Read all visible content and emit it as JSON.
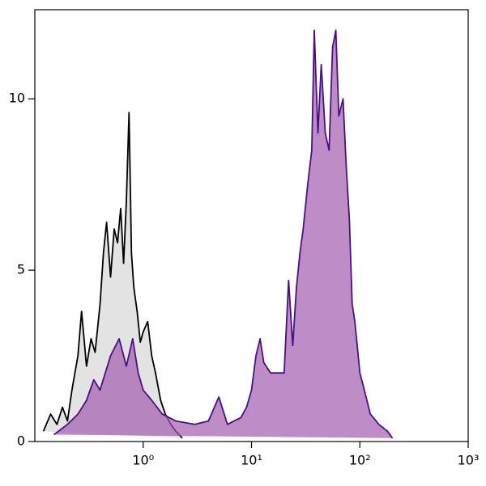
{
  "chart_data": {
    "type": "histogram-overlay",
    "xscale": "log",
    "xlim": [
      0.1,
      1000
    ],
    "ylim": [
      0,
      12.6
    ],
    "xticks": [
      {
        "value": 1,
        "label": "10⁰"
      },
      {
        "value": 10,
        "label": "10¹"
      },
      {
        "value": 100,
        "label": "10²"
      },
      {
        "value": 1000,
        "label": "10³"
      }
    ],
    "yticks": [
      0,
      5,
      10
    ],
    "series": [
      {
        "color": "#000000",
        "fill": "#e3e3e3",
        "fill_opacity": 1,
        "x": [
          0.12,
          0.14,
          0.16,
          0.18,
          0.2,
          0.22,
          0.25,
          0.27,
          0.3,
          0.33,
          0.36,
          0.4,
          0.43,
          0.46,
          0.5,
          0.54,
          0.58,
          0.62,
          0.66,
          0.7,
          0.74,
          0.78,
          0.82,
          0.88,
          0.94,
          1.0,
          1.1,
          1.2,
          1.3,
          1.45,
          1.6,
          1.8,
          2.0,
          2.3
        ],
        "values": [
          0.3,
          0.8,
          0.5,
          1.0,
          0.6,
          1.5,
          2.5,
          3.8,
          2.2,
          3.0,
          2.6,
          4.0,
          5.5,
          6.4,
          4.8,
          6.2,
          5.8,
          6.8,
          5.2,
          7.0,
          9.6,
          5.5,
          4.5,
          3.8,
          2.9,
          3.2,
          3.5,
          2.5,
          2.0,
          1.2,
          0.8,
          0.5,
          0.3,
          0.1
        ]
      },
      {
        "color": "#4b0f82",
        "fill": "#a35db0",
        "fill_opacity": 0.7,
        "x": [
          0.15,
          0.2,
          0.25,
          0.3,
          0.35,
          0.4,
          0.5,
          0.6,
          0.7,
          0.8,
          0.9,
          1.0,
          1.2,
          1.5,
          2,
          3,
          4,
          5,
          6,
          8,
          9,
          10,
          11,
          12,
          13,
          15,
          18,
          20,
          22,
          24,
          26,
          28,
          30,
          33,
          36,
          38,
          41,
          44,
          48,
          52,
          56,
          60,
          64,
          70,
          75,
          80,
          85,
          90,
          100,
          110,
          125,
          150,
          180,
          200
        ],
        "values": [
          0.2,
          0.5,
          0.8,
          1.2,
          1.8,
          1.5,
          2.5,
          3.0,
          2.2,
          3.0,
          2.0,
          1.5,
          1.2,
          0.8,
          0.6,
          0.5,
          0.6,
          1.3,
          0.5,
          0.7,
          1.0,
          1.5,
          2.5,
          3.0,
          2.3,
          2.0,
          2.0,
          2.0,
          4.7,
          2.8,
          4.5,
          5.5,
          6.2,
          7.5,
          8.5,
          12.0,
          9.0,
          11.0,
          9.0,
          8.5,
          11.5,
          12.0,
          9.5,
          10.0,
          8.0,
          6.5,
          4.0,
          3.5,
          2.0,
          1.5,
          0.8,
          0.5,
          0.3,
          0.1
        ]
      }
    ]
  }
}
